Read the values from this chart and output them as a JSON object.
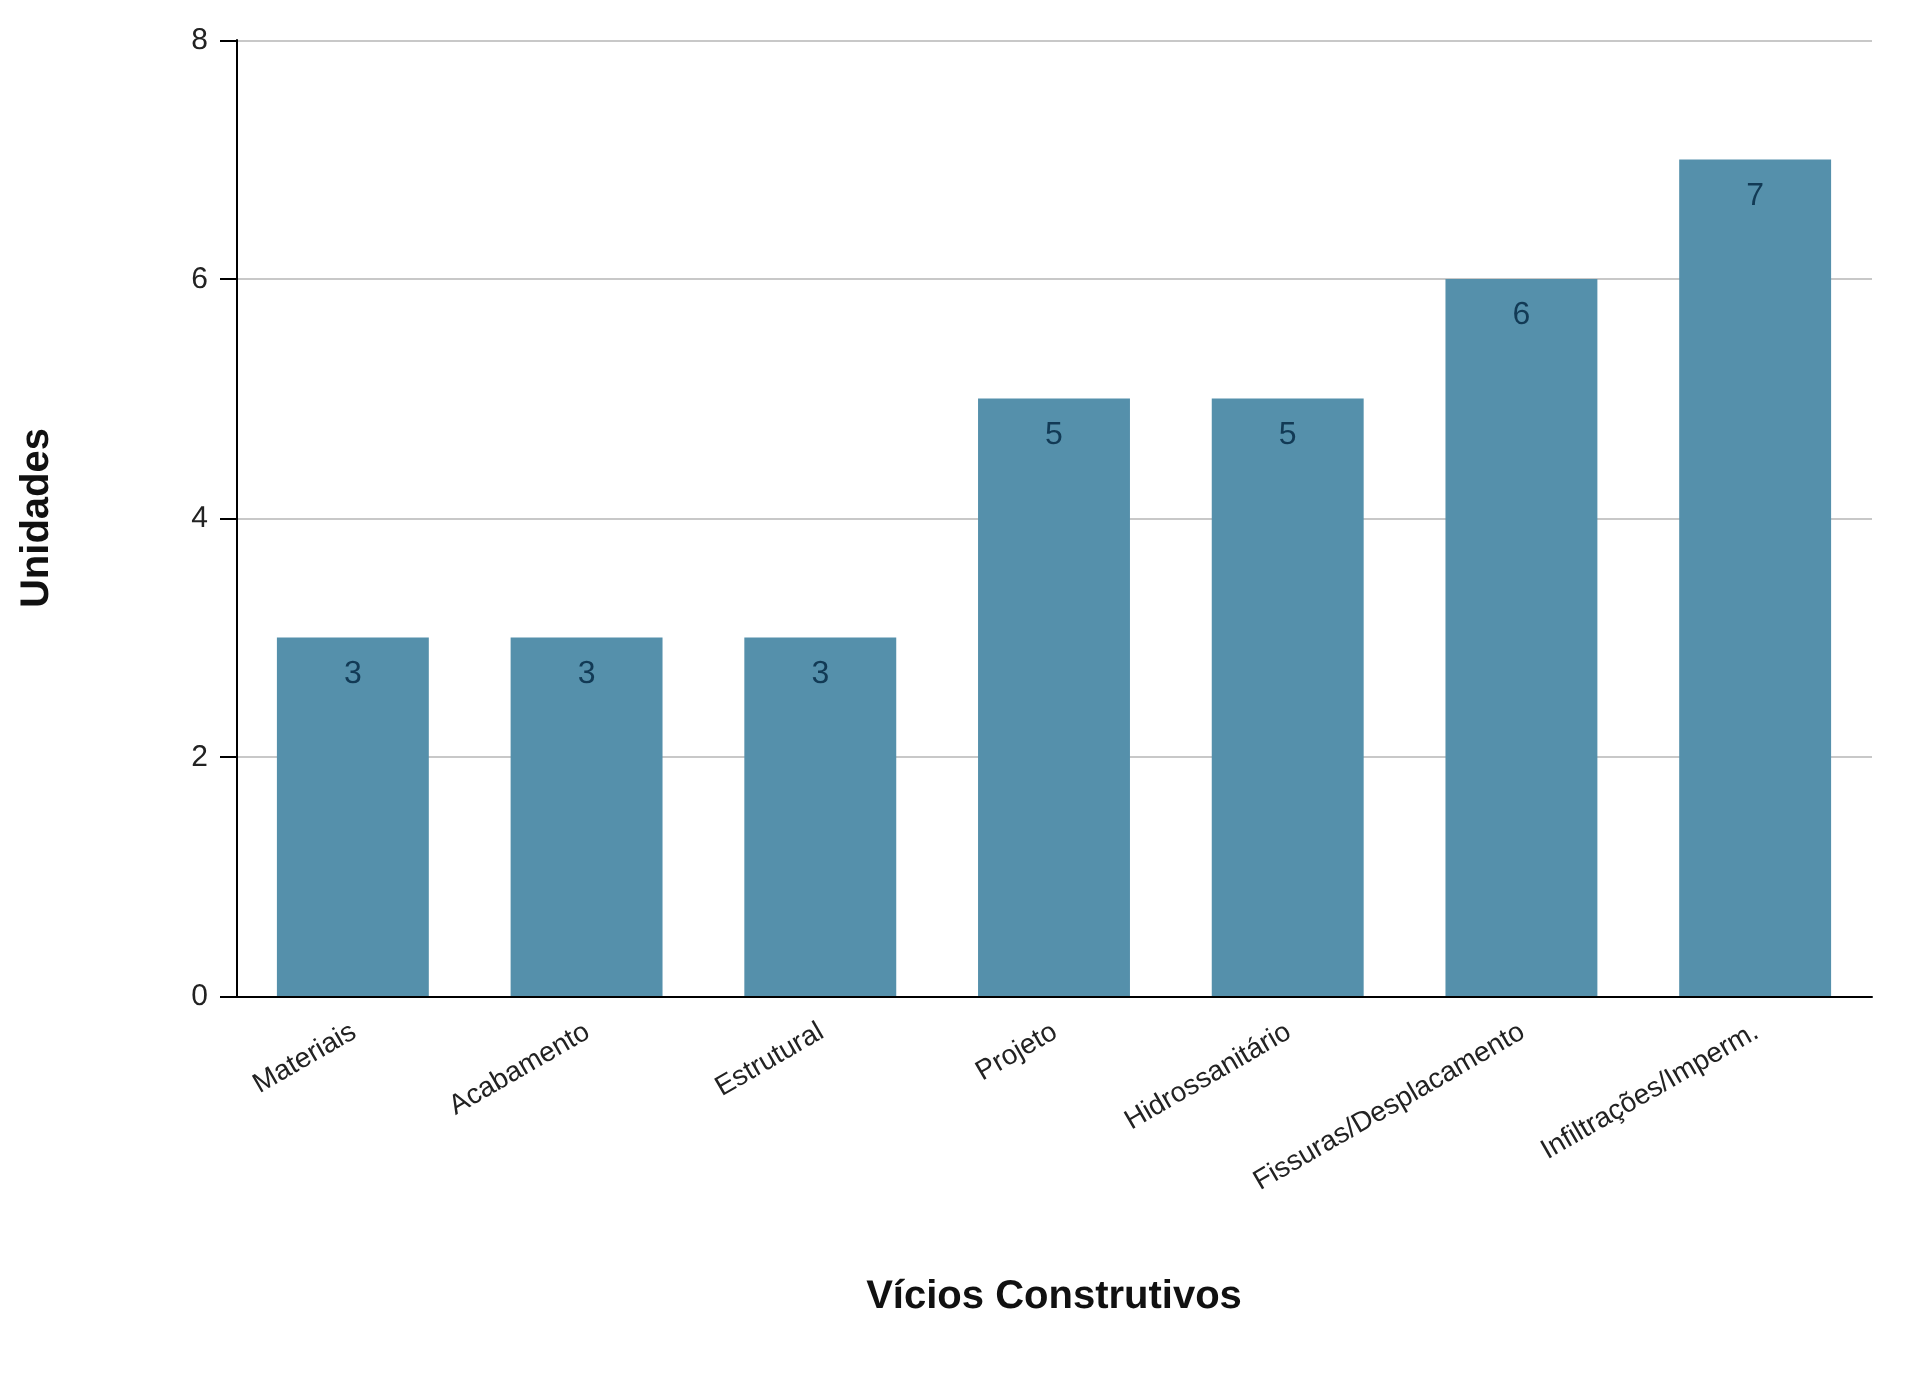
{
  "chart_data": {
    "type": "bar",
    "xlabel": "Vícios Construtivos",
    "ylabel": "Unidades",
    "categories": [
      "Materiais",
      "Acabamento",
      "Estrutural",
      "Projeto",
      "Hidrossanitário",
      "Fissuras/Desplacamento",
      "Infiltrações/Imperm."
    ],
    "values": [
      3,
      3,
      3,
      5,
      5,
      6,
      7
    ],
    "color": "#5590ab",
    "ylim": [
      0,
      8
    ],
    "yticks": [
      0,
      2,
      4,
      6,
      8
    ],
    "grid": "y",
    "data_labels": true
  }
}
